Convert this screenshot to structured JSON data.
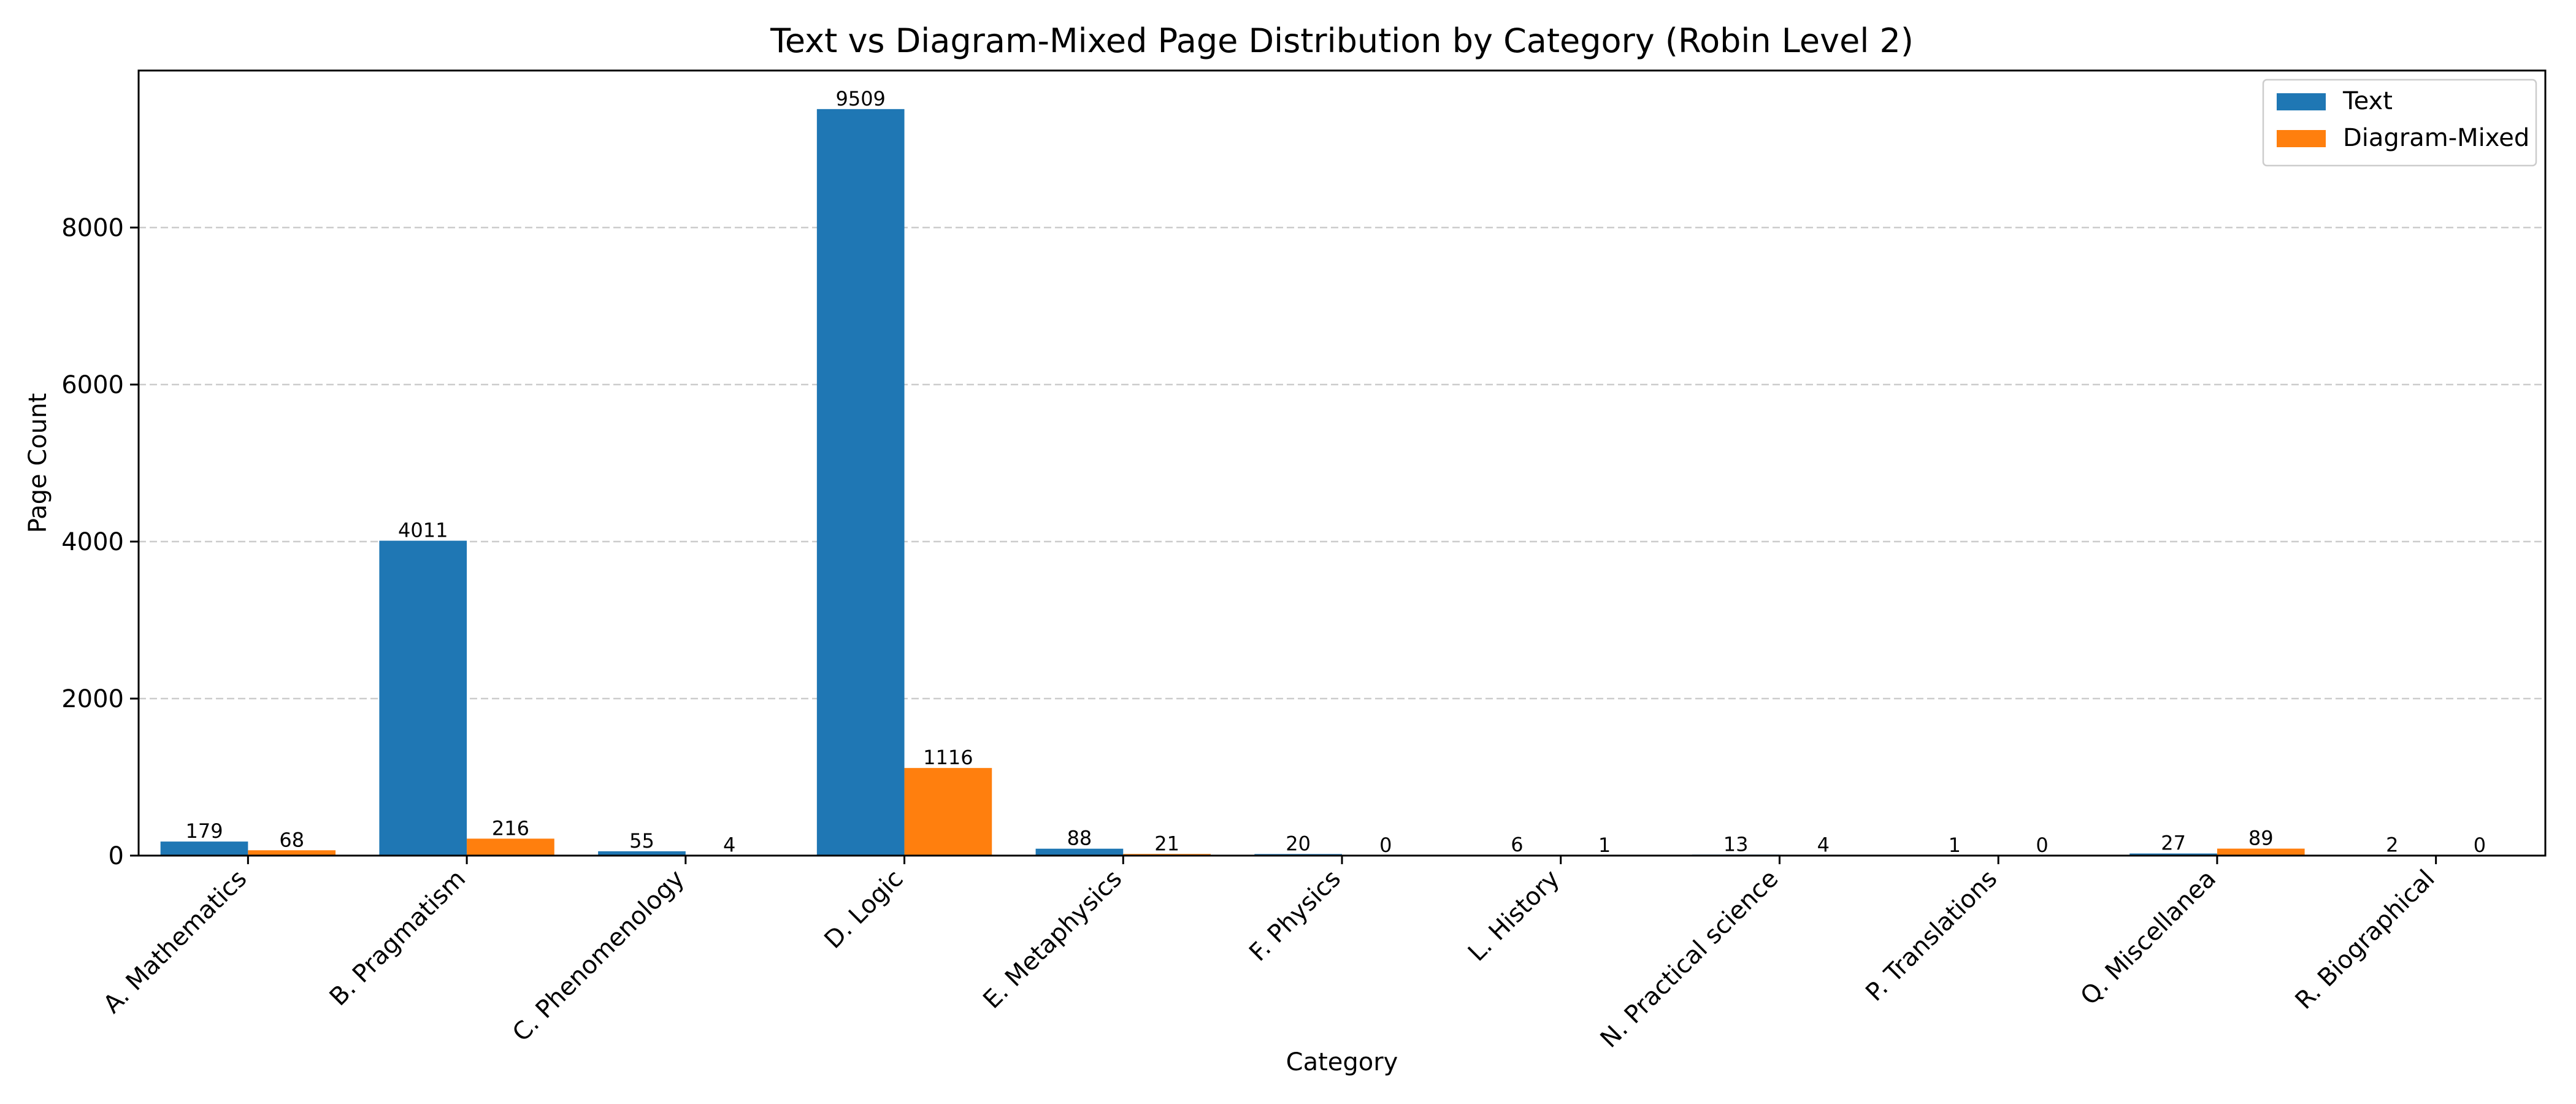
{
  "chart_data": {
    "type": "bar",
    "title": "Text vs Diagram-Mixed Page Distribution by Category (Robin Level 2)",
    "xlabel": "Category",
    "ylabel": "Page Count",
    "ylim": [
      0,
      10000
    ],
    "yticks": [
      0,
      2000,
      4000,
      6000,
      8000
    ],
    "grid": "horizontal dashed",
    "legend_position": "top-right",
    "categories": [
      "A. Mathematics",
      "B. Pragmatism",
      "C. Phenomenology",
      "D. Logic",
      "E. Metaphysics",
      "F. Physics",
      "L. History",
      "N. Practical science",
      "P. Translations",
      "Q. Miscellanea",
      "R. Biographical"
    ],
    "series": [
      {
        "name": "Text",
        "color": "#1f77b4",
        "values": [
          179,
          4011,
          55,
          9509,
          88,
          20,
          6,
          13,
          1,
          27,
          2
        ]
      },
      {
        "name": "Diagram-Mixed",
        "color": "#ff7f0e",
        "values": [
          68,
          216,
          4,
          1116,
          21,
          0,
          1,
          4,
          0,
          89,
          0
        ]
      }
    ]
  }
}
